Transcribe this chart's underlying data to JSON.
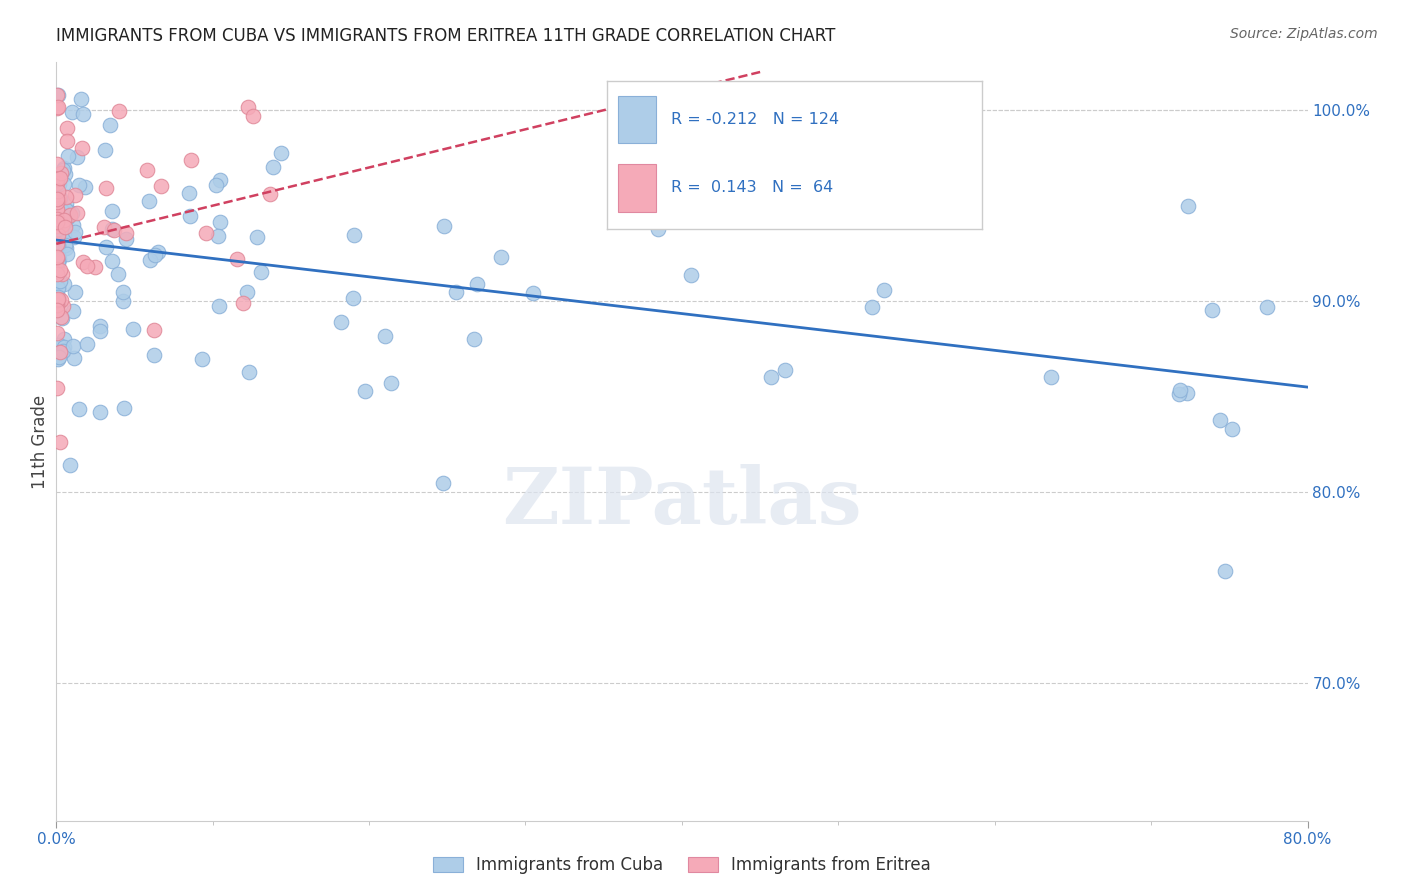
{
  "title": "IMMIGRANTS FROM CUBA VS IMMIGRANTS FROM ERITREA 11TH GRADE CORRELATION CHART",
  "source": "Source: ZipAtlas.com",
  "ylabel": "11th Grade",
  "legend_labels": [
    "Immigrants from Cuba",
    "Immigrants from Eritrea"
  ],
  "blue_R": -0.212,
  "blue_N": 124,
  "pink_R": 0.143,
  "pink_N": 64,
  "blue_color": "#aecde8",
  "pink_color": "#f5aab8",
  "blue_line_color": "#3070c0",
  "pink_line_color": "#d04060",
  "background_color": "#ffffff",
  "grid_color": "#cccccc",
  "xmin": 0.0,
  "xmax": 0.8,
  "ymin": 0.628,
  "ymax": 1.025,
  "yticks": [
    0.7,
    0.8,
    0.9,
    1.0
  ],
  "title_fontsize": 12,
  "tick_fontsize": 11,
  "source_fontsize": 10
}
